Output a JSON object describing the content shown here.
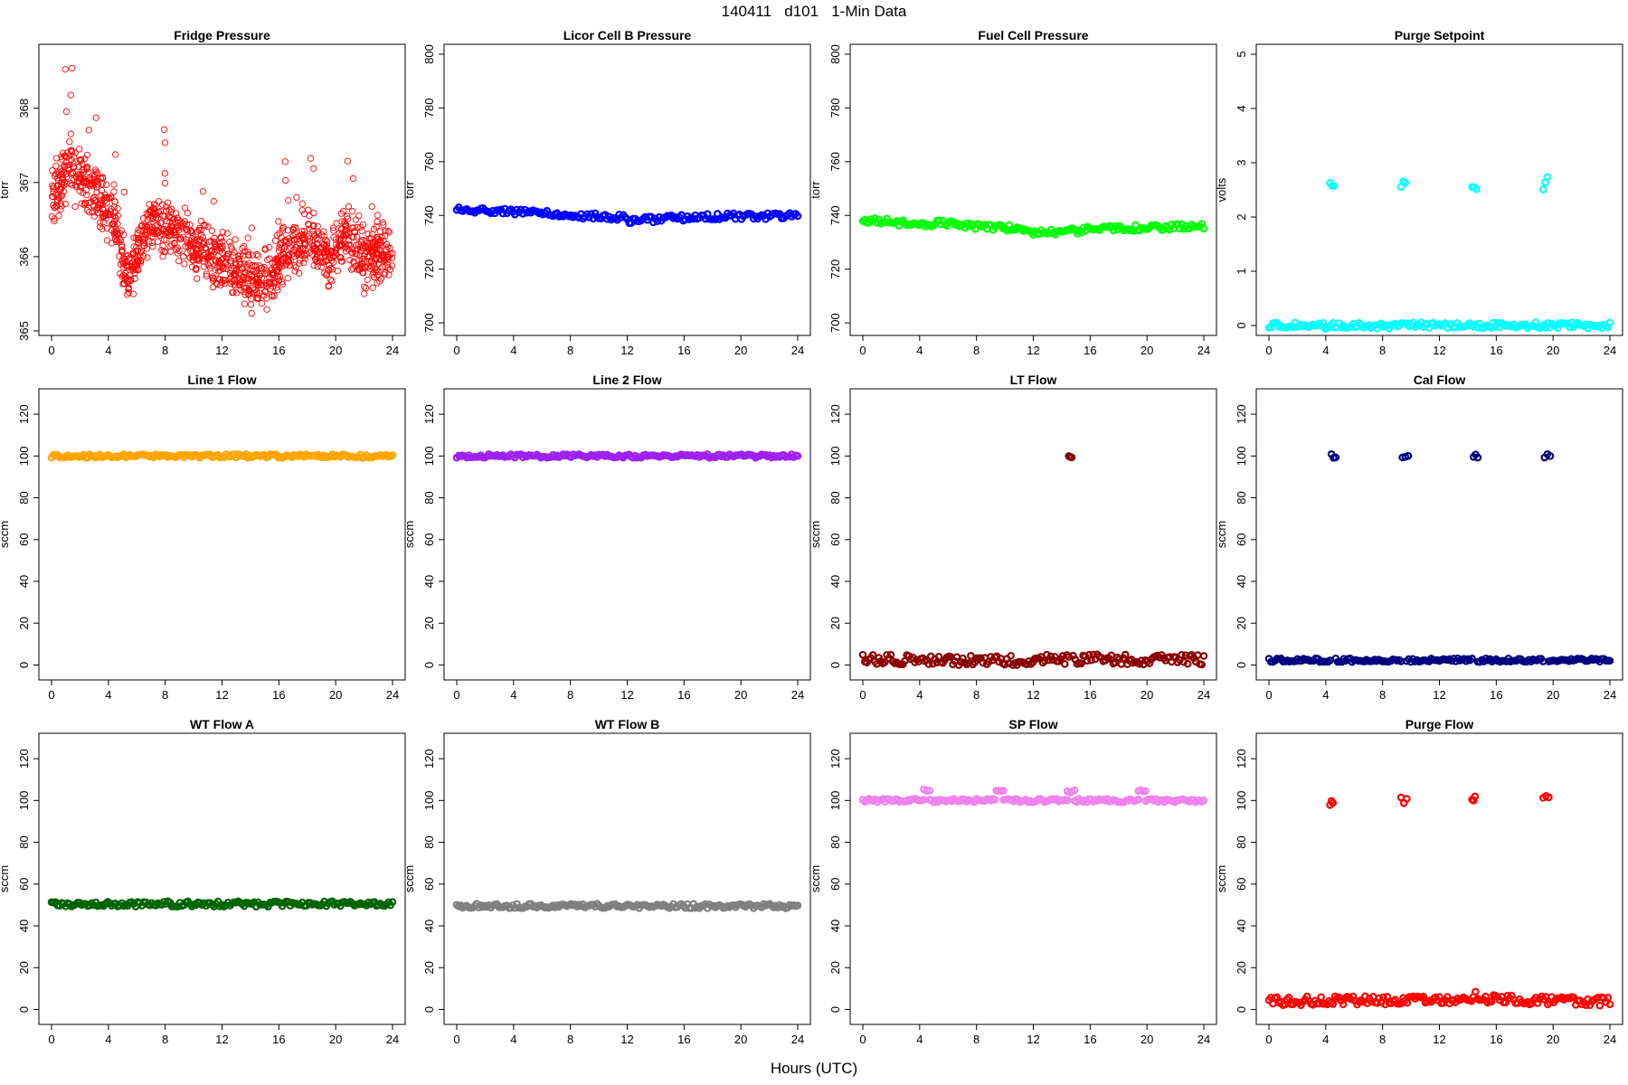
{
  "figure": {
    "title": "140411   d101   1-Min Data",
    "xlabel": "Hours (UTC)"
  },
  "chart_data": [
    {
      "type": "scatter",
      "title": "Fridge Pressure",
      "ylabel": "torr",
      "color": "#ff0000",
      "xlim": [
        0,
        24
      ],
      "ylim": [
        365,
        368.8
      ],
      "xticks": [
        0,
        4,
        8,
        12,
        16,
        20,
        24
      ],
      "yticks": [
        365,
        366,
        367,
        368
      ],
      "series": [
        {
          "style": "noisy",
          "segments": [
            {
              "x": [
                0,
                1.5,
                3.5,
                4.5,
                5.2,
                7,
                9,
                11,
                13,
                15,
                16.5,
                18,
                19.6,
                20.5,
                22,
                24
              ],
              "y": [
                366.8,
                367.2,
                366.7,
                366.6,
                365.6,
                366.5,
                366.3,
                366.0,
                365.8,
                365.6,
                366.1,
                366.2,
                365.9,
                366.3,
                366.0,
                366.0
              ],
              "spread": 0.55
            }
          ]
        }
      ]
    },
    {
      "type": "scatter",
      "title": "Licor Cell B Pressure",
      "ylabel": "torr",
      "color": "#0000ff",
      "xlim": [
        0,
        24
      ],
      "ylim": [
        697,
        802
      ],
      "xticks": [
        0,
        4,
        8,
        12,
        16,
        20,
        24
      ],
      "yticks": [
        700,
        720,
        740,
        760,
        780,
        800
      ],
      "series": [
        {
          "style": "band",
          "thickness": 3.5,
          "segments": [
            {
              "x": [
                0,
                3,
                6,
                9,
                11.8,
                12,
                14,
                16,
                18,
                21,
                24
              ],
              "y": [
                742.5,
                741.5,
                741.2,
                739.8,
                739.2,
                738.2,
                738.5,
                739.2,
                739.6,
                739.7,
                740
              ]
            }
          ]
        }
      ]
    },
    {
      "type": "scatter",
      "title": "Fuel Cell Pressure",
      "ylabel": "torr",
      "color": "#00ff00",
      "xlim": [
        0,
        24
      ],
      "ylim": [
        697,
        802
      ],
      "xticks": [
        0,
        4,
        8,
        12,
        16,
        20,
        24
      ],
      "yticks": [
        700,
        720,
        740,
        760,
        780,
        800
      ],
      "series": [
        {
          "style": "band",
          "thickness": 3.5,
          "segments": [
            {
              "x": [
                0,
                3,
                6,
                9,
                11.8,
                12,
                14,
                16,
                18,
                21,
                24
              ],
              "y": [
                738.5,
                737,
                737,
                735.5,
                735,
                733.5,
                733.8,
                734.8,
                735.2,
                735.5,
                735.8
              ]
            }
          ]
        }
      ]
    },
    {
      "type": "scatter",
      "title": "Purge Setpoint",
      "ylabel": "volts",
      "color": "#00ffff",
      "xlim": [
        0,
        24
      ],
      "ylim": [
        -0.1,
        5.1
      ],
      "xticks": [
        0,
        4,
        8,
        12,
        16,
        20,
        24
      ],
      "yticks": [
        0,
        1,
        2,
        3,
        4,
        5
      ],
      "series": [
        {
          "style": "band",
          "thickness": 3.5,
          "segments": [
            {
              "x": [
                0,
                24
              ],
              "y": [
                0,
                0
              ]
            },
            {
              "x": [
                4.3,
                4.6
              ],
              "y": [
                2.57,
                2.57
              ]
            },
            {
              "x": [
                9.3,
                9.6
              ],
              "y": [
                2.55,
                2.68
              ]
            },
            {
              "x": [
                14.3,
                14.6
              ],
              "y": [
                2.58,
                2.56
              ]
            },
            {
              "x": [
                19.3,
                19.6
              ],
              "y": [
                2.55,
                2.68
              ]
            }
          ]
        }
      ]
    },
    {
      "type": "scatter",
      "title": "Line 1 Flow",
      "ylabel": "sccm",
      "color": "#ffa500",
      "xlim": [
        0,
        24
      ],
      "ylim": [
        -5,
        130
      ],
      "xticks": [
        0,
        4,
        8,
        12,
        16,
        20,
        24
      ],
      "yticks": [
        0,
        20,
        40,
        60,
        80,
        100,
        120
      ],
      "series": [
        {
          "style": "band",
          "thickness": 2,
          "segments": [
            {
              "x": [
                0,
                24
              ],
              "y": [
                100,
                100
              ]
            }
          ]
        }
      ]
    },
    {
      "type": "scatter",
      "title": "Line 2 Flow",
      "ylabel": "sccm",
      "color": "#a020f0",
      "xlim": [
        0,
        24
      ],
      "ylim": [
        -5,
        130
      ],
      "xticks": [
        0,
        4,
        8,
        12,
        16,
        20,
        24
      ],
      "yticks": [
        0,
        20,
        40,
        60,
        80,
        100,
        120
      ],
      "series": [
        {
          "style": "band",
          "thickness": 2,
          "segments": [
            {
              "x": [
                0,
                24
              ],
              "y": [
                100,
                100
              ]
            }
          ]
        }
      ]
    },
    {
      "type": "scatter",
      "title": "LT Flow",
      "ylabel": "sccm",
      "color": "#8b0000",
      "xlim": [
        0,
        24
      ],
      "ylim": [
        -5,
        130
      ],
      "xticks": [
        0,
        4,
        8,
        12,
        16,
        20,
        24
      ],
      "yticks": [
        0,
        20,
        40,
        60,
        80,
        100,
        120
      ],
      "series": [
        {
          "style": "band",
          "thickness": 6,
          "segments": [
            {
              "x": [
                0,
                14.5
              ],
              "y": [
                2.5,
                2.5
              ]
            },
            {
              "x": [
                14.8,
                24
              ],
              "y": [
                2.5,
                2.5
              ]
            },
            {
              "x": [
                14.5,
                14.7
              ],
              "y": [
                101,
                98
              ]
            }
          ]
        }
      ]
    },
    {
      "type": "scatter",
      "title": "Cal Flow",
      "ylabel": "sccm",
      "color": "#000080",
      "xlim": [
        0,
        24
      ],
      "ylim": [
        -5,
        130
      ],
      "xticks": [
        0,
        4,
        8,
        12,
        16,
        20,
        24
      ],
      "yticks": [
        0,
        20,
        40,
        60,
        80,
        100,
        120
      ],
      "series": [
        {
          "style": "band",
          "thickness": 2,
          "segments": [
            {
              "x": [
                0,
                4.3
              ],
              "y": [
                2.3,
                2.3
              ]
            },
            {
              "x": [
                4.7,
                9.3
              ],
              "y": [
                2.3,
                2.3
              ]
            },
            {
              "x": [
                9.7,
                14.3
              ],
              "y": [
                2.3,
                2.3
              ]
            },
            {
              "x": [
                14.7,
                19.3
              ],
              "y": [
                2.3,
                2.3
              ]
            },
            {
              "x": [
                19.7,
                24
              ],
              "y": [
                2.3,
                2.3
              ]
            },
            {
              "x": [
                4.4,
                4.7
              ],
              "y": [
                100,
                100
              ]
            },
            {
              "x": [
                9.4,
                9.8
              ],
              "y": [
                100,
                100
              ]
            },
            {
              "x": [
                14.4,
                14.7
              ],
              "y": [
                100,
                100
              ]
            },
            {
              "x": [
                19.4,
                19.8
              ],
              "y": [
                100,
                100
              ]
            }
          ]
        }
      ]
    },
    {
      "type": "scatter",
      "title": "WT Flow A",
      "ylabel": "sccm",
      "color": "#006400",
      "xlim": [
        0,
        24
      ],
      "ylim": [
        -5,
        130
      ],
      "xticks": [
        0,
        4,
        8,
        12,
        16,
        20,
        24
      ],
      "yticks": [
        0,
        20,
        40,
        60,
        80,
        100,
        120
      ],
      "series": [
        {
          "style": "band",
          "thickness": 3,
          "segments": [
            {
              "x": [
                0,
                24
              ],
              "y": [
                50.5,
                50.5
              ]
            }
          ]
        }
      ]
    },
    {
      "type": "scatter",
      "title": "WT Flow B",
      "ylabel": "sccm",
      "color": "#808080",
      "xlim": [
        0,
        24
      ],
      "ylim": [
        -5,
        130
      ],
      "xticks": [
        0,
        4,
        8,
        12,
        16,
        20,
        24
      ],
      "yticks": [
        0,
        20,
        40,
        60,
        80,
        100,
        120
      ],
      "series": [
        {
          "style": "band",
          "thickness": 2.5,
          "segments": [
            {
              "x": [
                0,
                24
              ],
              "y": [
                49.5,
                49.5
              ]
            }
          ]
        }
      ]
    },
    {
      "type": "scatter",
      "title": "SP Flow",
      "ylabel": "sccm",
      "color": "#ee82ee",
      "xlim": [
        0,
        24
      ],
      "ylim": [
        -5,
        130
      ],
      "xticks": [
        0,
        4,
        8,
        12,
        16,
        20,
        24
      ],
      "yticks": [
        0,
        20,
        40,
        60,
        80,
        100,
        120
      ],
      "series": [
        {
          "style": "band",
          "thickness": 2,
          "segments": [
            {
              "x": [
                0,
                4.3
              ],
              "y": [
                100,
                100
              ]
            },
            {
              "x": [
                4.7,
                9.3
              ],
              "y": [
                100,
                100
              ]
            },
            {
              "x": [
                9.9,
                14.4
              ],
              "y": [
                100,
                100
              ]
            },
            {
              "x": [
                14.9,
                19.4
              ],
              "y": [
                100,
                100
              ]
            },
            {
              "x": [
                19.9,
                24
              ],
              "y": [
                100,
                100
              ]
            },
            {
              "x": [
                4.3,
                4.7
              ],
              "y": [
                104.5,
                104.5
              ]
            },
            {
              "x": [
                9.4,
                9.9
              ],
              "y": [
                104.5,
                104.5
              ]
            },
            {
              "x": [
                14.4,
                14.9
              ],
              "y": [
                104.5,
                104.5
              ]
            },
            {
              "x": [
                19.4,
                19.9
              ],
              "y": [
                104.5,
                104.5
              ]
            }
          ]
        }
      ]
    },
    {
      "type": "scatter",
      "title": "Purge Flow",
      "ylabel": "sccm",
      "color": "#ff0000",
      "xlim": [
        0,
        24
      ],
      "ylim": [
        -5,
        130
      ],
      "xticks": [
        0,
        4,
        8,
        12,
        16,
        20,
        24
      ],
      "yticks": [
        0,
        20,
        40,
        60,
        80,
        100,
        120
      ],
      "series": [
        {
          "style": "band",
          "thickness": 5,
          "segments": [
            {
              "x": [
                0,
                14.3,
                14.6,
                15,
                24
              ],
              "y": [
                4,
                4.5,
                7.5,
                5,
                3.8
              ]
            },
            {
              "x": [
                4.3,
                4.5
              ],
              "y": [
                100,
                100
              ]
            },
            {
              "x": [
                9.3,
                9.7
              ],
              "y": [
                100,
                100
              ]
            },
            {
              "x": [
                14.3,
                14.5
              ],
              "y": [
                100.5,
                100.5
              ]
            },
            {
              "x": [
                19.3,
                19.7
              ],
              "y": [
                100,
                100
              ]
            }
          ]
        }
      ]
    }
  ]
}
